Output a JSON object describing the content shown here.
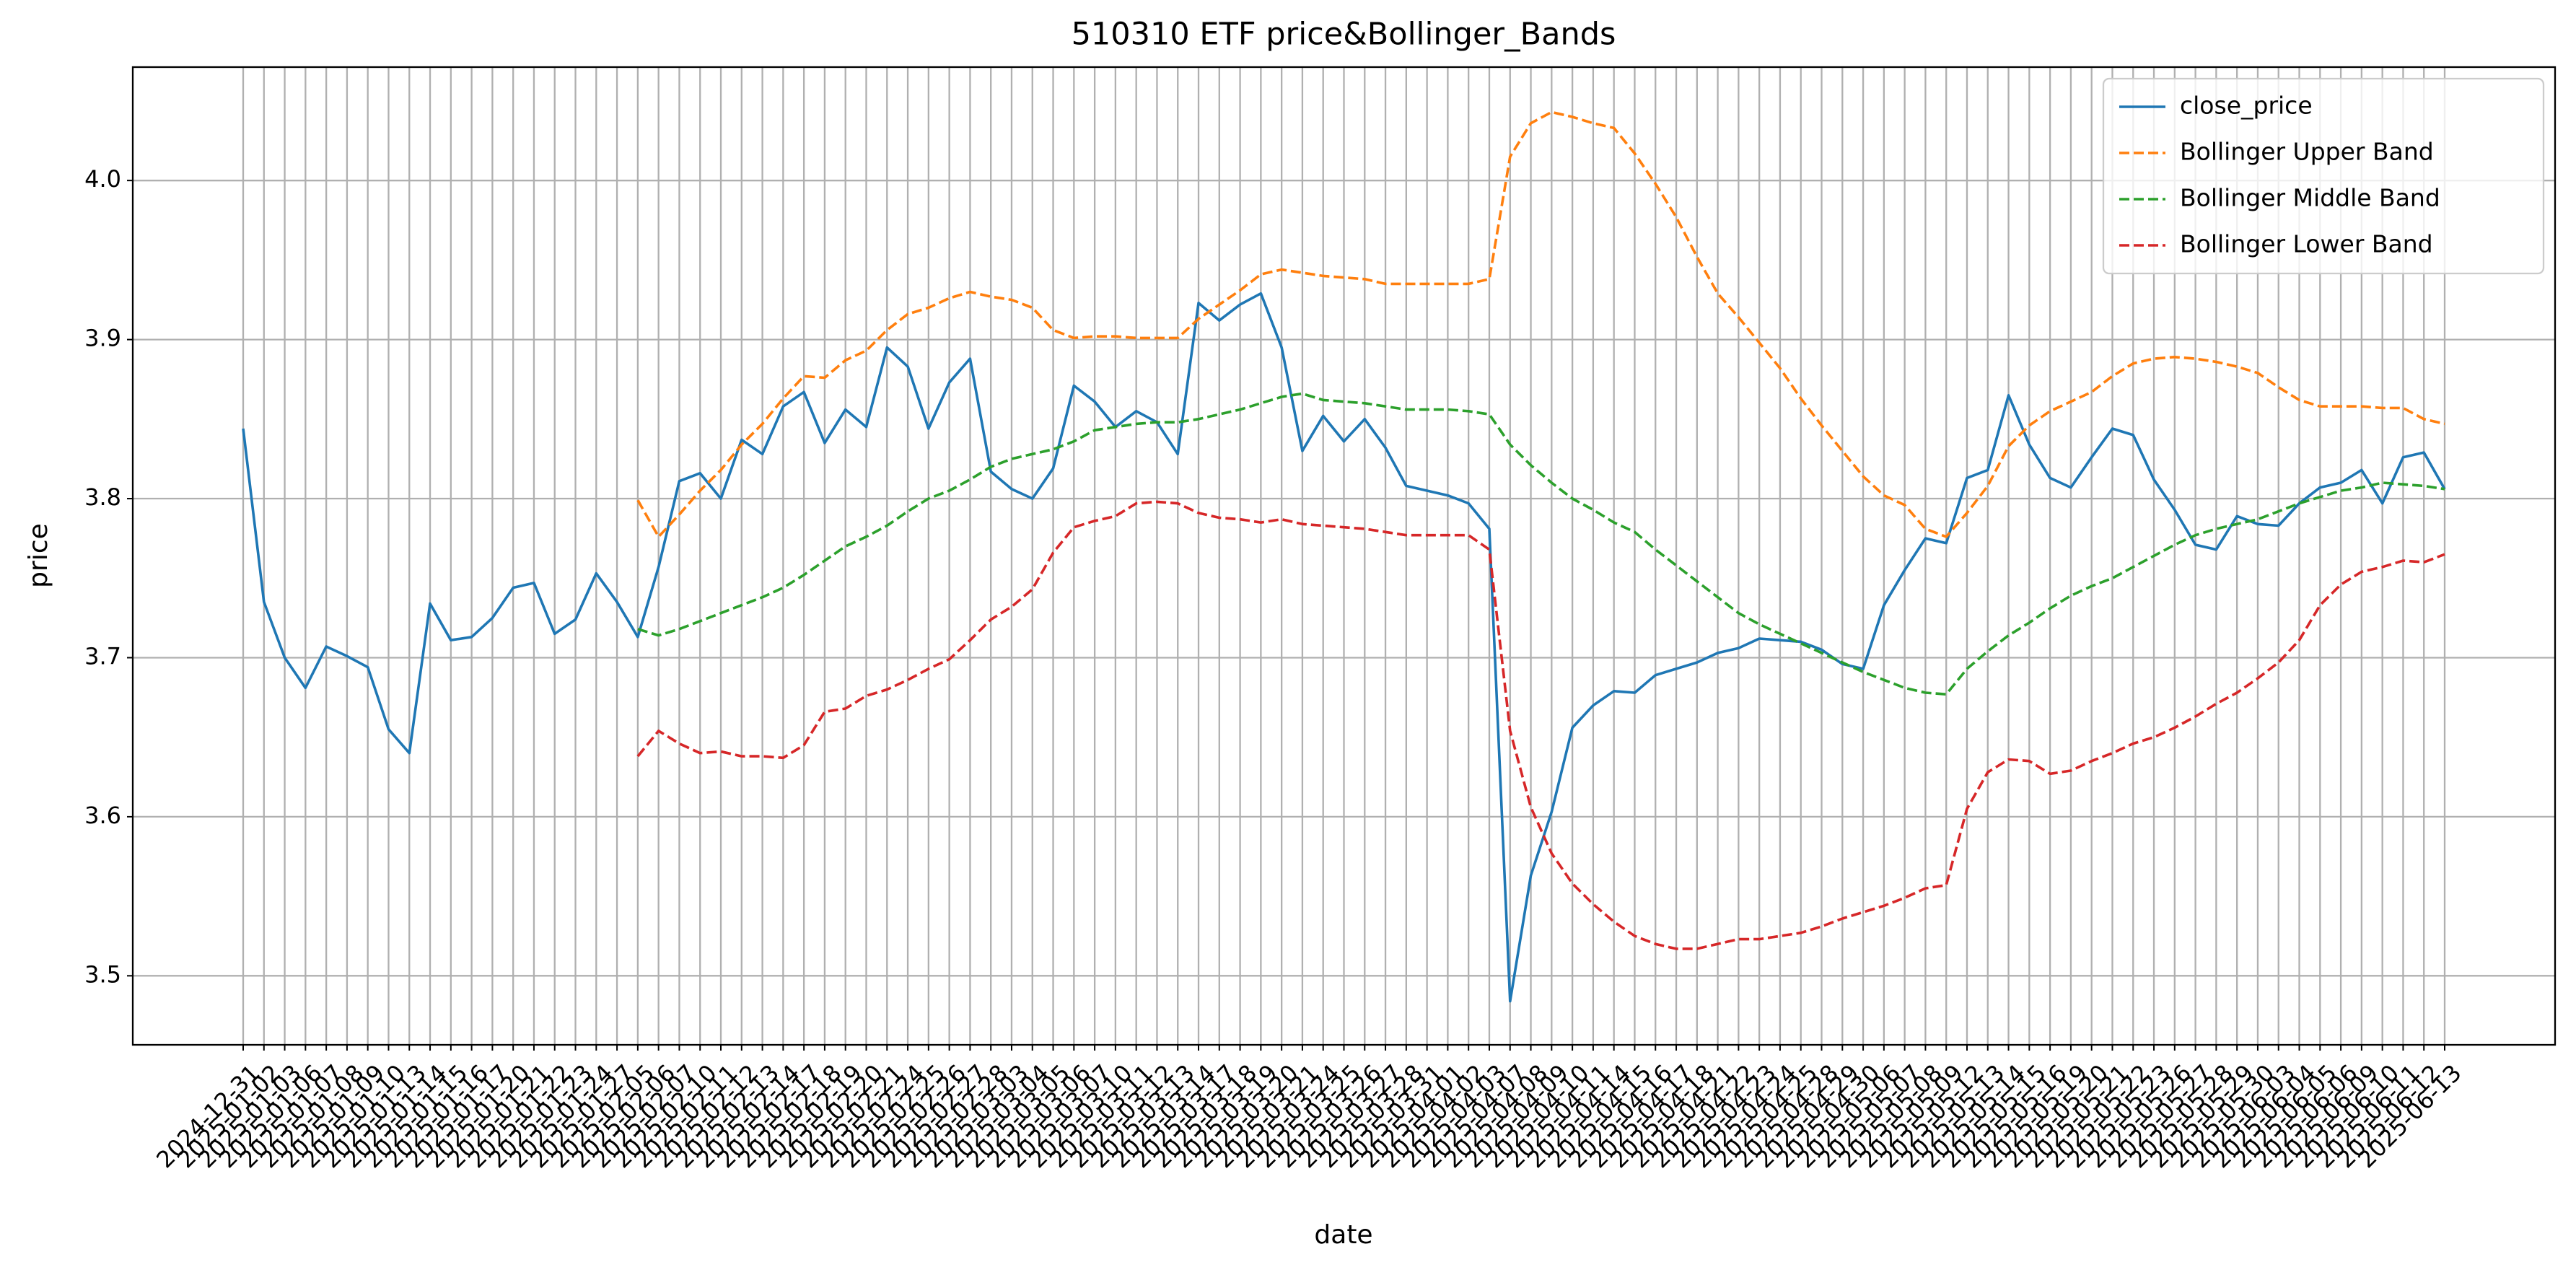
{
  "chart_data": {
    "type": "line",
    "title": "510310 ETF price&Bollinger_Bands",
    "xlabel": "date",
    "ylabel": "price",
    "categories": [
      "2024-12-31",
      "2025-01-02",
      "2025-01-03",
      "2025-01-06",
      "2025-01-07",
      "2025-01-08",
      "2025-01-09",
      "2025-01-10",
      "2025-01-13",
      "2025-01-14",
      "2025-01-15",
      "2025-01-16",
      "2025-01-17",
      "2025-01-20",
      "2025-01-21",
      "2025-01-22",
      "2025-01-23",
      "2025-01-24",
      "2025-01-27",
      "2025-02-05",
      "2025-02-06",
      "2025-02-07",
      "2025-02-10",
      "2025-02-11",
      "2025-02-12",
      "2025-02-13",
      "2025-02-14",
      "2025-02-17",
      "2025-02-18",
      "2025-02-19",
      "2025-02-20",
      "2025-02-21",
      "2025-02-24",
      "2025-02-25",
      "2025-02-26",
      "2025-02-27",
      "2025-02-28",
      "2025-03-03",
      "2025-03-04",
      "2025-03-05",
      "2025-03-06",
      "2025-03-07",
      "2025-03-10",
      "2025-03-11",
      "2025-03-12",
      "2025-03-13",
      "2025-03-14",
      "2025-03-17",
      "2025-03-18",
      "2025-03-19",
      "2025-03-20",
      "2025-03-21",
      "2025-03-24",
      "2025-03-25",
      "2025-03-26",
      "2025-03-27",
      "2025-03-28",
      "2025-03-31",
      "2025-04-01",
      "2025-04-02",
      "2025-04-03",
      "2025-04-07",
      "2025-04-08",
      "2025-04-09",
      "2025-04-10",
      "2025-04-11",
      "2025-04-14",
      "2025-04-15",
      "2025-04-16",
      "2025-04-17",
      "2025-04-18",
      "2025-04-21",
      "2025-04-22",
      "2025-04-23",
      "2025-04-24",
      "2025-04-25",
      "2025-04-28",
      "2025-04-29",
      "2025-04-30",
      "2025-05-06",
      "2025-05-07",
      "2025-05-08",
      "2025-05-09",
      "2025-05-12",
      "2025-05-13",
      "2025-05-14",
      "2025-05-15",
      "2025-05-16",
      "2025-05-19",
      "2025-05-20",
      "2025-05-21",
      "2025-05-22",
      "2025-05-23",
      "2025-05-26",
      "2025-05-27",
      "2025-05-28",
      "2025-05-29",
      "2025-05-30",
      "2025-06-03",
      "2025-06-04",
      "2025-06-05",
      "2025-06-06",
      "2025-06-09",
      "2025-06-10",
      "2025-06-11",
      "2025-06-12",
      "2025-06-13"
    ],
    "series": [
      {
        "name": "close_price",
        "color": "#1f77b4",
        "linestyle": "solid",
        "values": [
          3.844,
          3.735,
          3.7,
          3.681,
          3.707,
          3.701,
          3.694,
          3.655,
          3.64,
          3.734,
          3.711,
          3.713,
          3.725,
          3.744,
          3.747,
          3.715,
          3.724,
          3.753,
          3.735,
          3.713,
          3.757,
          3.811,
          3.816,
          3.8,
          3.837,
          3.828,
          3.858,
          3.867,
          3.835,
          3.856,
          3.845,
          3.895,
          3.883,
          3.844,
          3.873,
          3.888,
          3.817,
          3.806,
          3.8,
          3.819,
          3.871,
          3.861,
          3.845,
          3.855,
          3.848,
          3.828,
          3.923,
          3.912,
          3.922,
          3.929,
          3.895,
          3.83,
          3.852,
          3.836,
          3.85,
          3.832,
          3.808,
          3.805,
          3.802,
          3.797,
          3.781,
          3.484,
          3.563,
          3.603,
          3.656,
          3.67,
          3.679,
          3.678,
          3.689,
          3.693,
          3.697,
          3.703,
          3.706,
          3.712,
          3.711,
          3.71,
          3.705,
          3.696,
          3.693,
          3.733,
          3.755,
          3.775,
          3.772,
          3.813,
          3.818,
          3.865,
          3.834,
          3.813,
          3.807,
          3.826,
          3.844,
          3.84,
          3.812,
          3.793,
          3.771,
          3.768,
          3.789,
          3.784,
          3.783,
          3.797,
          3.807,
          3.81,
          3.818,
          3.797,
          3.826,
          3.829,
          3.806
        ]
      },
      {
        "name": "Bollinger Upper Band",
        "color": "#ff7f0e",
        "linestyle": "dashed",
        "values": [
          null,
          null,
          null,
          null,
          null,
          null,
          null,
          null,
          null,
          null,
          null,
          null,
          null,
          null,
          null,
          null,
          null,
          null,
          null,
          3.799,
          3.776,
          3.79,
          3.805,
          3.818,
          3.834,
          3.847,
          3.863,
          3.877,
          3.876,
          3.887,
          3.893,
          3.906,
          3.916,
          3.92,
          3.926,
          3.93,
          3.927,
          3.925,
          3.92,
          3.906,
          3.901,
          3.902,
          3.902,
          3.901,
          3.901,
          3.901,
          3.913,
          3.922,
          3.931,
          3.941,
          3.944,
          3.942,
          3.94,
          3.939,
          3.938,
          3.935,
          3.935,
          3.935,
          3.935,
          3.935,
          3.938,
          4.015,
          4.036,
          4.043,
          4.04,
          4.036,
          4.033,
          4.017,
          3.998,
          3.977,
          3.952,
          3.929,
          3.914,
          3.898,
          3.882,
          3.863,
          3.846,
          3.83,
          3.814,
          3.802,
          3.796,
          3.781,
          3.776,
          3.791,
          3.808,
          3.833,
          3.846,
          3.855,
          3.861,
          3.867,
          3.877,
          3.885,
          3.888,
          3.889,
          3.888,
          3.886,
          3.883,
          3.879,
          3.87,
          3.862,
          3.858,
          3.858,
          3.858,
          3.857,
          3.857,
          3.85,
          3.847
        ]
      },
      {
        "name": "Bollinger Middle Band",
        "color": "#2ca02c",
        "linestyle": "dashed",
        "values": [
          null,
          null,
          null,
          null,
          null,
          null,
          null,
          null,
          null,
          null,
          null,
          null,
          null,
          null,
          null,
          null,
          null,
          null,
          null,
          3.718,
          3.714,
          3.718,
          3.723,
          3.728,
          3.733,
          3.738,
          3.744,
          3.752,
          3.761,
          3.77,
          3.776,
          3.783,
          3.792,
          3.8,
          3.805,
          3.812,
          3.82,
          3.825,
          3.828,
          3.831,
          3.836,
          3.843,
          3.845,
          3.847,
          3.848,
          3.848,
          3.85,
          3.853,
          3.856,
          3.86,
          3.864,
          3.866,
          3.862,
          3.861,
          3.86,
          3.858,
          3.856,
          3.856,
          3.856,
          3.855,
          3.853,
          3.834,
          3.821,
          3.81,
          3.8,
          3.793,
          3.785,
          3.779,
          3.768,
          3.758,
          3.748,
          3.738,
          3.728,
          3.721,
          3.715,
          3.709,
          3.703,
          3.697,
          3.691,
          3.686,
          3.681,
          3.678,
          3.677,
          3.693,
          3.704,
          3.714,
          3.722,
          3.731,
          3.739,
          3.745,
          3.75,
          3.757,
          3.764,
          3.771,
          3.777,
          3.781,
          3.784,
          3.787,
          3.792,
          3.797,
          3.801,
          3.805,
          3.807,
          3.81,
          3.809,
          3.808,
          3.806
        ]
      },
      {
        "name": "Bollinger Lower Band",
        "color": "#d62728",
        "linestyle": "dashed",
        "values": [
          null,
          null,
          null,
          null,
          null,
          null,
          null,
          null,
          null,
          null,
          null,
          null,
          null,
          null,
          null,
          null,
          null,
          null,
          null,
          3.638,
          3.654,
          3.646,
          3.64,
          3.641,
          3.638,
          3.638,
          3.637,
          3.645,
          3.666,
          3.668,
          3.676,
          3.68,
          3.686,
          3.693,
          3.699,
          3.711,
          3.724,
          3.732,
          3.743,
          3.766,
          3.782,
          3.786,
          3.789,
          3.797,
          3.798,
          3.797,
          3.791,
          3.788,
          3.787,
          3.785,
          3.787,
          3.784,
          3.783,
          3.782,
          3.781,
          3.779,
          3.777,
          3.777,
          3.777,
          3.777,
          3.768,
          3.654,
          3.606,
          3.577,
          3.558,
          3.545,
          3.534,
          3.525,
          3.52,
          3.517,
          3.517,
          3.52,
          3.523,
          3.523,
          3.525,
          3.527,
          3.531,
          3.536,
          3.54,
          3.544,
          3.549,
          3.555,
          3.557,
          3.605,
          3.628,
          3.636,
          3.635,
          3.627,
          3.629,
          3.635,
          3.64,
          3.646,
          3.65,
          3.656,
          3.663,
          3.671,
          3.678,
          3.687,
          3.697,
          3.711,
          3.733,
          3.746,
          3.754,
          3.757,
          3.761,
          3.76,
          3.765
        ]
      }
    ],
    "ylim": [
      3.4566,
      4.0713
    ],
    "yticks": [
      {
        "value": 3.5,
        "label": "3.5"
      },
      3.6,
      3.7,
      3.8,
      3.9,
      {
        "value": 4,
        "label": "4.0"
      }
    ],
    "grid": true,
    "legend": "upper right"
  }
}
